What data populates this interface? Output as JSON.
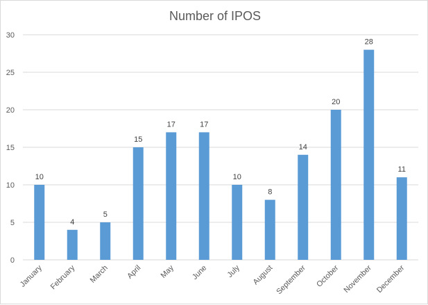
{
  "chart_data": {
    "type": "bar",
    "title": "Number of IPOS",
    "xlabel": "",
    "ylabel": "",
    "categories": [
      "January",
      "February",
      "March",
      "April",
      "May",
      "June",
      "July",
      "August",
      "September",
      "October",
      "November",
      "December"
    ],
    "values": [
      10,
      4,
      5,
      15,
      17,
      17,
      10,
      8,
      14,
      20,
      28,
      11
    ],
    "ylim": [
      0,
      30
    ],
    "yticks": [
      0,
      5,
      10,
      15,
      20,
      25,
      30
    ],
    "grid": true,
    "legend": "none",
    "bar_color": "#5b9bd5"
  }
}
